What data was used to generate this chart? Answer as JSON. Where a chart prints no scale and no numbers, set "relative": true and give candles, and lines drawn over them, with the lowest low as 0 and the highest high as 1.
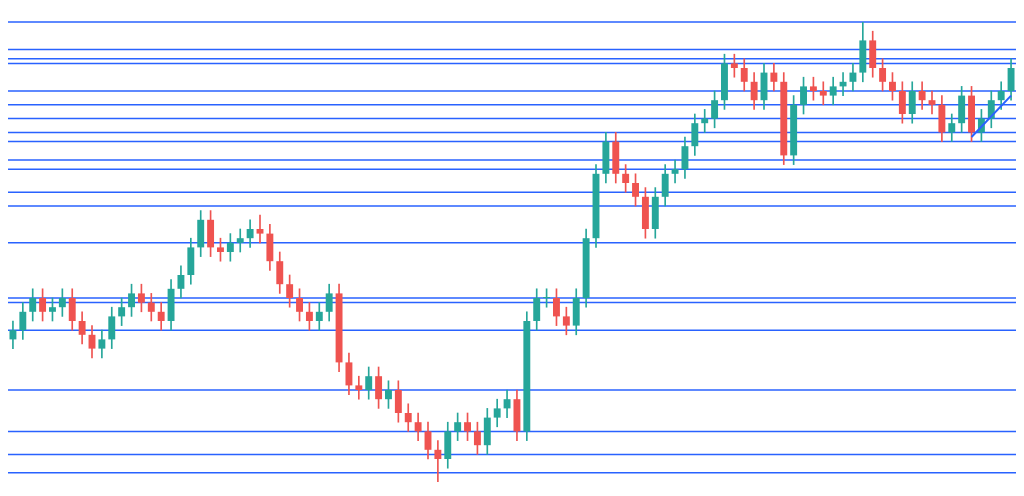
{
  "chart_data": {
    "type": "candlestick",
    "relative": true,
    "legend": false,
    "categories": [
      null,
      null,
      null,
      null,
      null,
      null,
      null,
      null,
      null,
      null,
      null,
      null,
      null,
      null,
      null,
      null,
      null,
      null,
      null,
      null,
      null,
      null,
      null,
      null,
      null,
      null,
      null,
      null,
      null,
      null,
      null,
      null,
      null,
      null,
      null,
      null,
      null,
      null,
      null,
      null,
      null,
      null,
      null,
      null,
      null,
      null,
      null,
      null,
      null,
      null,
      null,
      null,
      null,
      null,
      null,
      null,
      null,
      null,
      null,
      null,
      null,
      null,
      null,
      null,
      null,
      null,
      null,
      null,
      null,
      null,
      null,
      null,
      null,
      null,
      null,
      null,
      null,
      null,
      null,
      null,
      null,
      null,
      null,
      null,
      null,
      null,
      null,
      null,
      null,
      null,
      null,
      null,
      null,
      null,
      null,
      null,
      null,
      null,
      null,
      null,
      null,
      null
    ],
    "ohlc": [
      [
        0.31,
        0.35,
        0.29,
        0.33
      ],
      [
        0.33,
        0.39,
        0.31,
        0.37
      ],
      [
        0.37,
        0.42,
        0.35,
        0.4
      ],
      [
        0.4,
        0.42,
        0.35,
        0.37
      ],
      [
        0.37,
        0.4,
        0.35,
        0.38
      ],
      [
        0.38,
        0.42,
        0.36,
        0.4
      ],
      [
        0.4,
        0.42,
        0.33,
        0.35
      ],
      [
        0.35,
        0.37,
        0.3,
        0.32
      ],
      [
        0.32,
        0.34,
        0.27,
        0.29
      ],
      [
        0.29,
        0.33,
        0.27,
        0.31
      ],
      [
        0.31,
        0.38,
        0.29,
        0.36
      ],
      [
        0.36,
        0.4,
        0.34,
        0.38
      ],
      [
        0.38,
        0.43,
        0.36,
        0.41
      ],
      [
        0.41,
        0.43,
        0.37,
        0.39
      ],
      [
        0.39,
        0.41,
        0.35,
        0.37
      ],
      [
        0.37,
        0.39,
        0.33,
        0.35
      ],
      [
        0.35,
        0.44,
        0.33,
        0.42
      ],
      [
        0.42,
        0.47,
        0.4,
        0.45
      ],
      [
        0.45,
        0.53,
        0.43,
        0.51
      ],
      [
        0.51,
        0.59,
        0.49,
        0.57
      ],
      [
        0.57,
        0.59,
        0.49,
        0.51
      ],
      [
        0.51,
        0.53,
        0.48,
        0.5
      ],
      [
        0.5,
        0.54,
        0.48,
        0.52
      ],
      [
        0.52,
        0.55,
        0.5,
        0.53
      ],
      [
        0.53,
        0.57,
        0.51,
        0.55
      ],
      [
        0.55,
        0.58,
        0.52,
        0.54
      ],
      [
        0.54,
        0.56,
        0.46,
        0.48
      ],
      [
        0.48,
        0.5,
        0.41,
        0.43
      ],
      [
        0.43,
        0.45,
        0.38,
        0.4
      ],
      [
        0.4,
        0.42,
        0.35,
        0.37
      ],
      [
        0.37,
        0.39,
        0.33,
        0.35
      ],
      [
        0.35,
        0.39,
        0.33,
        0.37
      ],
      [
        0.37,
        0.43,
        0.35,
        0.41
      ],
      [
        0.41,
        0.43,
        0.24,
        0.26
      ],
      [
        0.26,
        0.28,
        0.19,
        0.21
      ],
      [
        0.21,
        0.23,
        0.18,
        0.2
      ],
      [
        0.2,
        0.25,
        0.18,
        0.23
      ],
      [
        0.23,
        0.25,
        0.16,
        0.18
      ],
      [
        0.18,
        0.22,
        0.16,
        0.2
      ],
      [
        0.2,
        0.22,
        0.13,
        0.15
      ],
      [
        0.15,
        0.17,
        0.11,
        0.13
      ],
      [
        0.13,
        0.15,
        0.09,
        0.11
      ],
      [
        0.11,
        0.13,
        0.05,
        0.07
      ],
      [
        0.07,
        0.09,
        0,
        0.05
      ],
      [
        0.05,
        0.13,
        0.03,
        0.11
      ],
      [
        0.11,
        0.15,
        0.09,
        0.13
      ],
      [
        0.13,
        0.15,
        0.09,
        0.11
      ],
      [
        0.11,
        0.13,
        0.06,
        0.08
      ],
      [
        0.08,
        0.16,
        0.06,
        0.14
      ],
      [
        0.14,
        0.18,
        0.12,
        0.16
      ],
      [
        0.16,
        0.2,
        0.14,
        0.18
      ],
      [
        0.18,
        0.2,
        0.09,
        0.11
      ],
      [
        0.11,
        0.37,
        0.09,
        0.35
      ],
      [
        0.35,
        0.42,
        0.33,
        0.4
      ],
      [
        0.4,
        0.42,
        0.38,
        0.4
      ],
      [
        0.4,
        0.42,
        0.34,
        0.36
      ],
      [
        0.36,
        0.38,
        0.32,
        0.34
      ],
      [
        0.34,
        0.42,
        0.32,
        0.4
      ],
      [
        0.4,
        0.55,
        0.38,
        0.53
      ],
      [
        0.53,
        0.69,
        0.51,
        0.67
      ],
      [
        0.67,
        0.76,
        0.65,
        0.74
      ],
      [
        0.74,
        0.76,
        0.65,
        0.67
      ],
      [
        0.67,
        0.69,
        0.63,
        0.65
      ],
      [
        0.65,
        0.67,
        0.6,
        0.62
      ],
      [
        0.62,
        0.64,
        0.53,
        0.55
      ],
      [
        0.55,
        0.64,
        0.53,
        0.62
      ],
      [
        0.62,
        0.69,
        0.6,
        0.67
      ],
      [
        0.67,
        0.7,
        0.65,
        0.68
      ],
      [
        0.68,
        0.75,
        0.66,
        0.73
      ],
      [
        0.73,
        0.8,
        0.71,
        0.78
      ],
      [
        0.78,
        0.81,
        0.76,
        0.79
      ],
      [
        0.79,
        0.85,
        0.77,
        0.83
      ],
      [
        0.83,
        0.93,
        0.81,
        0.91
      ],
      [
        0.91,
        0.93,
        0.88,
        0.9
      ],
      [
        0.9,
        0.92,
        0.85,
        0.87
      ],
      [
        0.87,
        0.89,
        0.81,
        0.83
      ],
      [
        0.83,
        0.91,
        0.81,
        0.89
      ],
      [
        0.89,
        0.91,
        0.85,
        0.87
      ],
      [
        0.87,
        0.89,
        0.69,
        0.71
      ],
      [
        0.71,
        0.84,
        0.69,
        0.82
      ],
      [
        0.82,
        0.88,
        0.8,
        0.86
      ],
      [
        0.86,
        0.88,
        0.83,
        0.85
      ],
      [
        0.85,
        0.87,
        0.82,
        0.84
      ],
      [
        0.84,
        0.88,
        0.82,
        0.86
      ],
      [
        0.86,
        0.89,
        0.84,
        0.87
      ],
      [
        0.87,
        0.91,
        0.85,
        0.89
      ],
      [
        0.89,
        1,
        0.87,
        0.96
      ],
      [
        0.96,
        0.98,
        0.88,
        0.9
      ],
      [
        0.9,
        0.92,
        0.85,
        0.87
      ],
      [
        0.87,
        0.89,
        0.83,
        0.85
      ],
      [
        0.85,
        0.87,
        0.78,
        0.8
      ],
      [
        0.8,
        0.87,
        0.78,
        0.85
      ],
      [
        0.85,
        0.87,
        0.81,
        0.83
      ],
      [
        0.83,
        0.85,
        0.8,
        0.82
      ],
      [
        0.82,
        0.84,
        0.74,
        0.76
      ],
      [
        0.76,
        0.8,
        0.74,
        0.78
      ],
      [
        0.78,
        0.86,
        0.76,
        0.84
      ],
      [
        0.84,
        0.86,
        0.74,
        0.76
      ],
      [
        0.76,
        0.81,
        0.74,
        0.79
      ],
      [
        0.79,
        0.85,
        0.77,
        0.83
      ],
      [
        0.83,
        0.87,
        0.81,
        0.85
      ],
      [
        0.85,
        0.92,
        0.83,
        0.9
      ]
    ],
    "colors": [
      "#26a69a",
      "#26a69a",
      "#26a69a",
      "#ef5350",
      "#26a69a",
      "#26a69a",
      "#ef5350",
      "#ef5350",
      "#ef5350",
      "#26a69a",
      "#26a69a",
      "#26a69a",
      "#26a69a",
      "#ef5350",
      "#ef5350",
      "#ef5350",
      "#26a69a",
      "#26a69a",
      "#26a69a",
      "#26a69a",
      "#ef5350",
      "#ef5350",
      "#26a69a",
      "#26a69a",
      "#26a69a",
      "#ef5350",
      "#ef5350",
      "#ef5350",
      "#ef5350",
      "#ef5350",
      "#ef5350",
      "#26a69a",
      "#26a69a",
      "#ef5350",
      "#ef5350",
      "#ef5350",
      "#26a69a",
      "#ef5350",
      "#26a69a",
      "#ef5350",
      "#ef5350",
      "#ef5350",
      "#ef5350",
      "#ef5350",
      "#26a69a",
      "#26a69a",
      "#ef5350",
      "#ef5350",
      "#26a69a",
      "#26a69a",
      "#26a69a",
      "#ef5350",
      "#26a69a",
      "#26a69a",
      "#26a69a",
      "#ef5350",
      "#ef5350",
      "#26a69a",
      "#26a69a",
      "#26a69a",
      "#26a69a",
      "#ef5350",
      "#ef5350",
      "#ef5350",
      "#ef5350",
      "#26a69a",
      "#26a69a",
      "#26a69a",
      "#26a69a",
      "#26a69a",
      "#26a69a",
      "#26a69a",
      "#26a69a",
      "#ef5350",
      "#ef5350",
      "#ef5350",
      "#26a69a",
      "#ef5350",
      "#ef5350",
      "#26a69a",
      "#26a69a",
      "#ef5350",
      "#ef5350",
      "#26a69a",
      "#26a69a",
      "#26a69a",
      "#26a69a",
      "#ef5350",
      "#ef5350",
      "#ef5350",
      "#ef5350",
      "#26a69a",
      "#ef5350",
      "#ef5350",
      "#ef5350",
      "#26a69a",
      "#26a69a",
      "#ef5350",
      "#26a69a",
      "#26a69a",
      "#26a69a",
      "#26a69a"
    ],
    "series": [
      {
        "type": "line",
        "color": "#2962ff",
        "values": [
          null,
          null,
          null,
          null,
          null,
          null,
          null,
          null,
          null,
          null,
          null,
          null,
          null,
          null,
          null,
          null,
          null,
          null,
          null,
          null,
          null,
          null,
          null,
          null,
          null,
          null,
          null,
          null,
          null,
          null,
          null,
          null,
          null,
          null,
          null,
          null,
          null,
          null,
          null,
          null,
          null,
          null,
          null,
          null,
          null,
          null,
          null,
          null,
          null,
          null,
          null,
          null,
          null,
          null,
          null,
          null,
          null,
          null,
          null,
          null,
          null,
          null,
          null,
          null,
          null,
          null,
          null,
          null,
          null,
          null,
          null,
          null,
          null,
          null,
          null,
          null,
          null,
          null,
          null,
          null,
          null,
          null,
          null,
          null,
          null,
          null,
          null,
          null,
          null,
          null,
          null,
          null,
          null,
          null,
          null,
          null,
          null,
          0.75,
          null,
          null,
          null,
          0.84
        ]
      }
    ],
    "ref_lines": [
      {
        "axis": "y",
        "value": 1,
        "color": "#2962ff"
      },
      {
        "axis": "y",
        "value": 0.94,
        "color": "#2962ff"
      },
      {
        "axis": "y",
        "value": 0.92,
        "color": "#2962ff"
      },
      {
        "axis": "y",
        "value": 0.91,
        "color": "#2962ff"
      },
      {
        "axis": "y",
        "value": 0.85,
        "color": "#2962ff"
      },
      {
        "axis": "y",
        "value": 0.82,
        "color": "#2962ff"
      },
      {
        "axis": "y",
        "value": 0.79,
        "color": "#2962ff"
      },
      {
        "axis": "y",
        "value": 0.76,
        "color": "#2962ff"
      },
      {
        "axis": "y",
        "value": 0.74,
        "color": "#2962ff"
      },
      {
        "axis": "y",
        "value": 0.7,
        "color": "#2962ff"
      },
      {
        "axis": "y",
        "value": 0.68,
        "color": "#2962ff"
      },
      {
        "axis": "y",
        "value": 0.63,
        "color": "#2962ff"
      },
      {
        "axis": "y",
        "value": 0.6,
        "color": "#2962ff"
      },
      {
        "axis": "y",
        "value": 0.52,
        "color": "#2962ff"
      },
      {
        "axis": "y",
        "value": 0.4,
        "color": "#2962ff"
      },
      {
        "axis": "y",
        "value": 0.39,
        "color": "#2962ff"
      },
      {
        "axis": "y",
        "value": 0.33,
        "color": "#2962ff"
      },
      {
        "axis": "y",
        "value": 0.2,
        "color": "#2962ff"
      },
      {
        "axis": "y",
        "value": 0.11,
        "color": "#2962ff"
      },
      {
        "axis": "y",
        "value": 0.06,
        "color": "#2962ff"
      },
      {
        "axis": "y",
        "value": 0.02,
        "color": "#2962ff"
      }
    ]
  }
}
